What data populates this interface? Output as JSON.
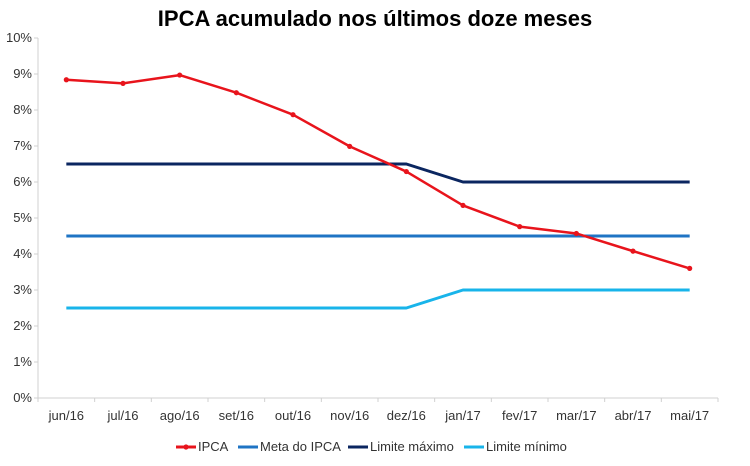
{
  "chart_data": {
    "type": "line",
    "title": "IPCA acumulado nos últimos doze meses",
    "xlabel": "",
    "ylabel": "",
    "categories": [
      "jun/16",
      "jul/16",
      "ago/16",
      "set/16",
      "out/16",
      "nov/16",
      "dez/16",
      "jan/17",
      "fev/17",
      "mar/17",
      "abr/17",
      "mai/17"
    ],
    "ylim": [
      0,
      10
    ],
    "yticks": [
      "0%",
      "1%",
      "2%",
      "3%",
      "4%",
      "5%",
      "6%",
      "7%",
      "8%",
      "9%",
      "10%"
    ],
    "grid": false,
    "legend_position": "bottom",
    "series": [
      {
        "name": "IPCA",
        "color": "#e8141c",
        "markers": true,
        "values": [
          8.84,
          8.74,
          8.97,
          8.48,
          7.87,
          6.99,
          6.29,
          5.35,
          4.76,
          4.57,
          4.08,
          3.6
        ]
      },
      {
        "name": "Meta do IPCA",
        "color": "#1f74c4",
        "markers": false,
        "values": [
          4.5,
          4.5,
          4.5,
          4.5,
          4.5,
          4.5,
          4.5,
          4.5,
          4.5,
          4.5,
          4.5,
          4.5
        ]
      },
      {
        "name": "Limite máximo",
        "color": "#0b2660",
        "markers": false,
        "values": [
          6.5,
          6.5,
          6.5,
          6.5,
          6.5,
          6.5,
          6.5,
          6.0,
          6.0,
          6.0,
          6.0,
          6.0
        ]
      },
      {
        "name": "Limite mínimo",
        "color": "#18b4ea",
        "markers": false,
        "values": [
          2.5,
          2.5,
          2.5,
          2.5,
          2.5,
          2.5,
          2.5,
          3.0,
          3.0,
          3.0,
          3.0,
          3.0
        ]
      }
    ]
  }
}
